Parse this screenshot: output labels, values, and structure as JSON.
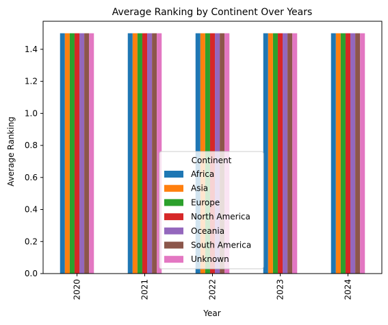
{
  "chart_data": {
    "type": "bar",
    "title": "Average Ranking by Continent Over Years",
    "xlabel": "Year",
    "ylabel": "Average Ranking",
    "categories": [
      "2020",
      "2021",
      "2022",
      "2023",
      "2024"
    ],
    "ylim": [
      0,
      1.575
    ],
    "yticks": [
      "0.0",
      "0.2",
      "0.4",
      "0.6",
      "0.8",
      "1.0",
      "1.2",
      "1.4"
    ],
    "legend": {
      "title": "Continent",
      "placement": "lower center"
    },
    "grid": false,
    "series": [
      {
        "name": "Africa",
        "color": "#1f77b4",
        "values": [
          1.5,
          1.5,
          1.5,
          1.5,
          1.5
        ]
      },
      {
        "name": "Asia",
        "color": "#ff7f0e",
        "values": [
          1.5,
          1.5,
          1.5,
          1.5,
          1.5
        ]
      },
      {
        "name": "Europe",
        "color": "#2ca02c",
        "values": [
          1.5,
          1.5,
          1.5,
          1.5,
          1.5
        ]
      },
      {
        "name": "North America",
        "color": "#d62728",
        "values": [
          1.5,
          1.5,
          1.5,
          1.5,
          1.5
        ]
      },
      {
        "name": "Oceania",
        "color": "#9467bd",
        "values": [
          1.5,
          1.5,
          1.5,
          1.5,
          1.5
        ]
      },
      {
        "name": "South America",
        "color": "#8c564b",
        "values": [
          1.5,
          1.5,
          1.5,
          1.5,
          1.5
        ]
      },
      {
        "name": "Unknown",
        "color": "#e377c2",
        "values": [
          1.5,
          1.5,
          1.5,
          1.5,
          1.5
        ]
      }
    ]
  }
}
